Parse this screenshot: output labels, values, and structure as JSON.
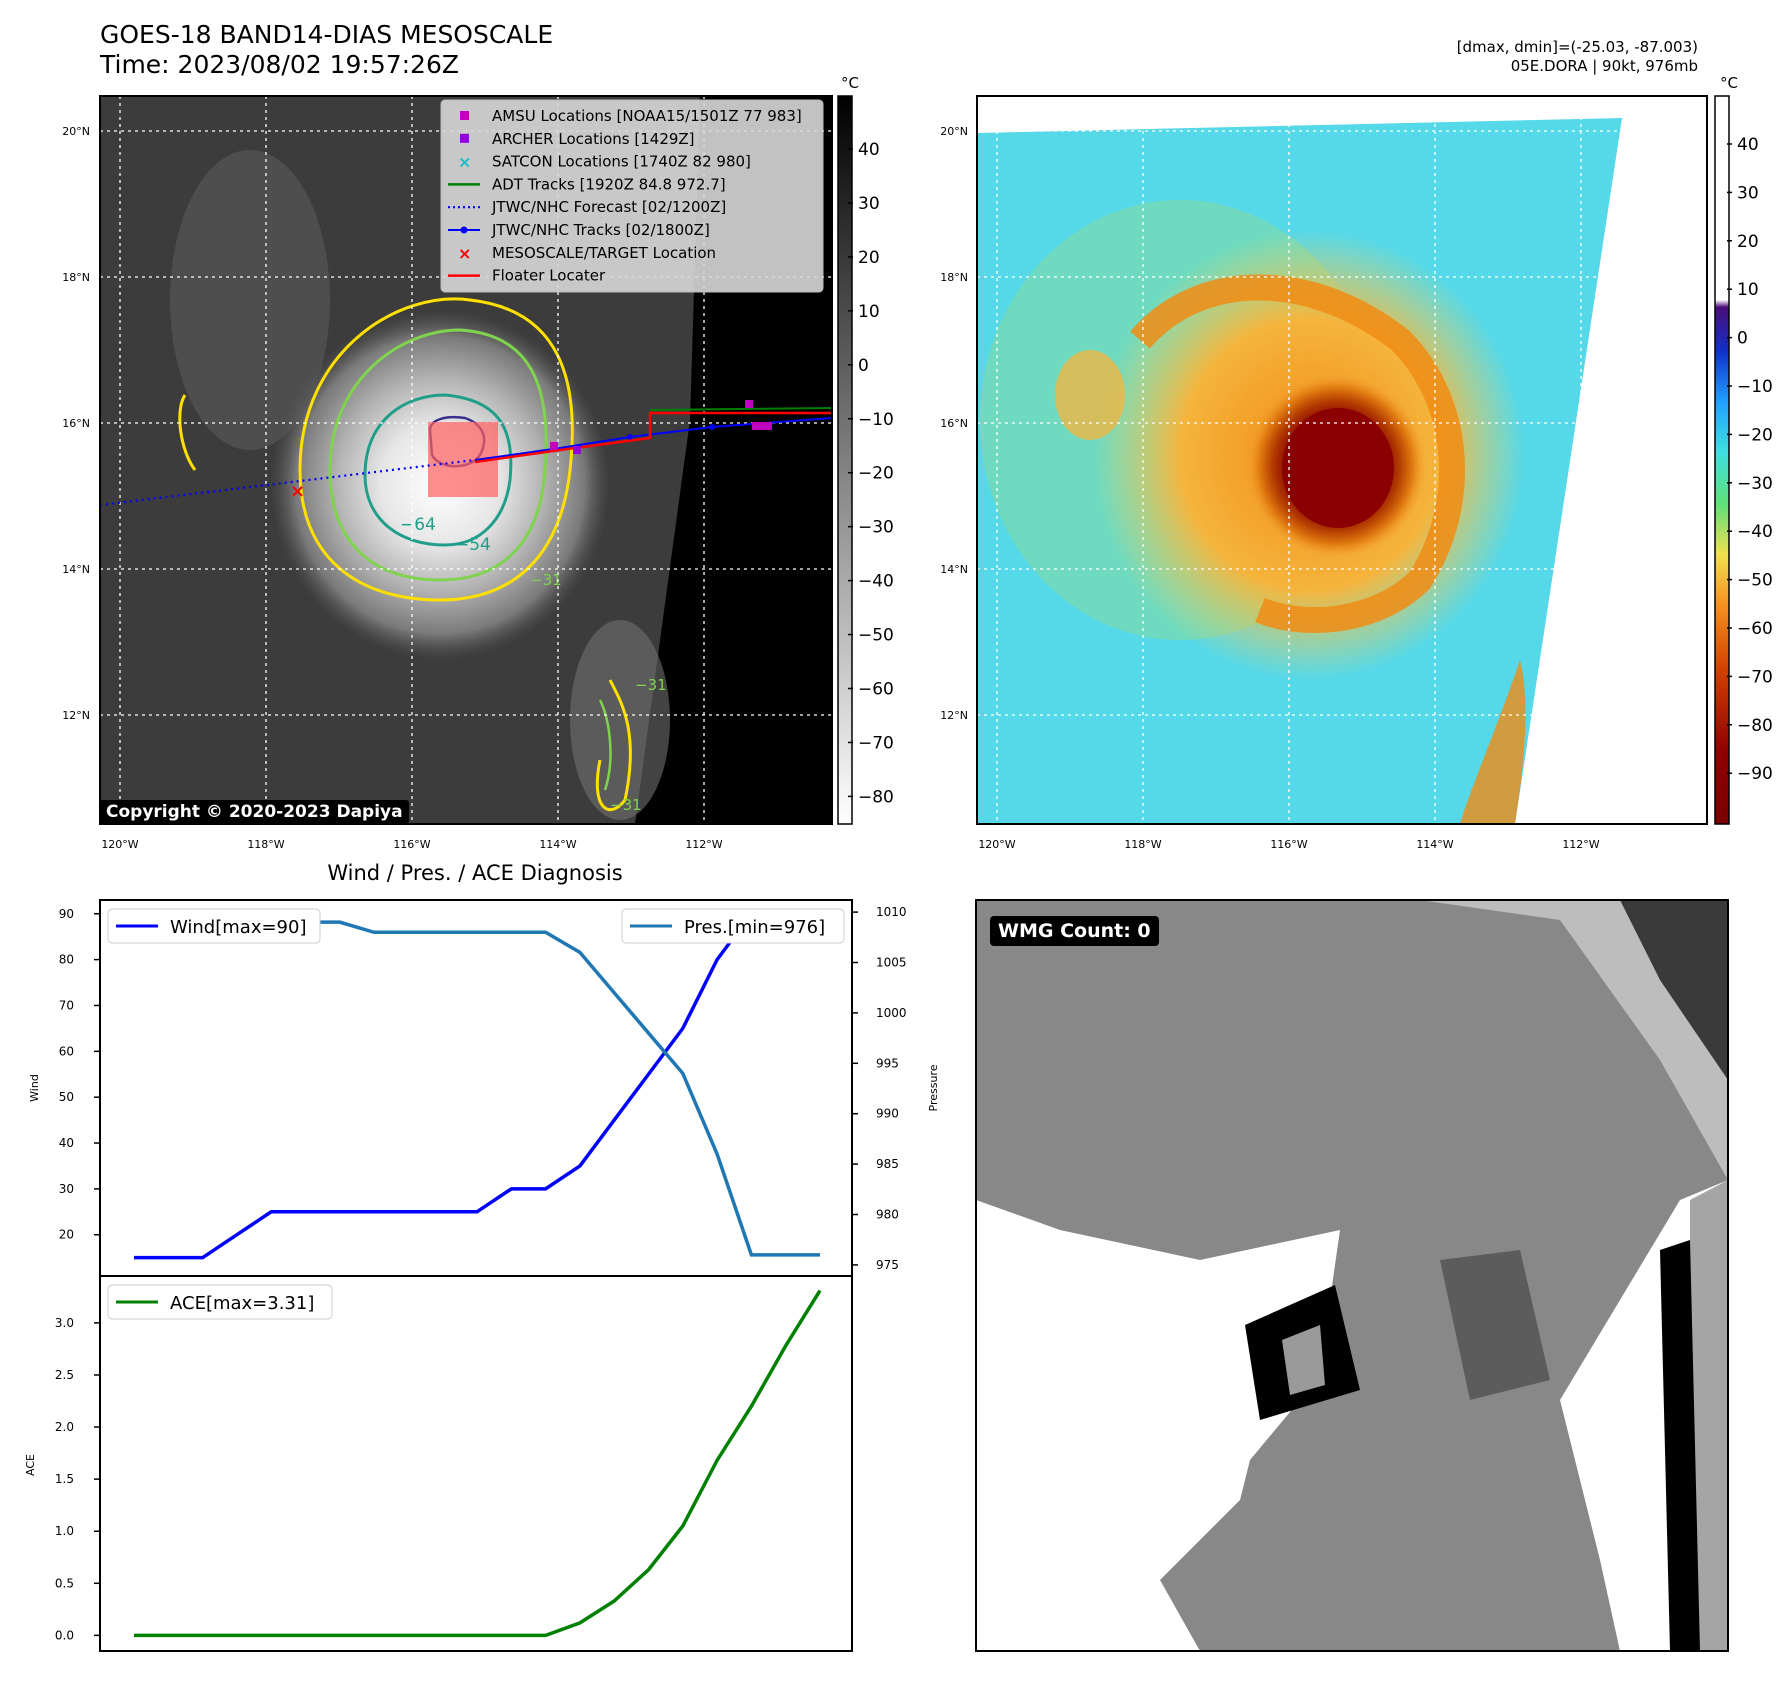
{
  "header": {
    "title_line1": "GOES-18 BAND14-DIAS MESOSCALE",
    "title_line2": "Time: 2023/08/02 19:57:26Z",
    "right_line1": "[dmax, dmin]=(-25.03, -87.003)",
    "right_line2": "05E.DORA | 90kt, 976mb"
  },
  "map_left": {
    "copyright": "Copyright © 2020-2023 Dapiya",
    "lat_ticks": [
      "20°N",
      "18°N",
      "16°N",
      "14°N",
      "12°N"
    ],
    "lon_ticks": [
      "120°W",
      "118°W",
      "116°W",
      "114°W",
      "112°W"
    ],
    "colorbar_unit": "°C",
    "colorbar_ticks": [
      "40",
      "30",
      "20",
      "10",
      "0",
      "−10",
      "−20",
      "−30",
      "−40",
      "−50",
      "−60",
      "−70",
      "−80"
    ],
    "contour_labels": [
      "−64",
      "−54",
      "−31",
      "−31",
      "−31"
    ],
    "legend": [
      {
        "label": "AMSU Locations [NOAA15/1501Z 77 983]",
        "marker": "square",
        "color": "#bf00bf"
      },
      {
        "label": "ARCHER Locations [1429Z]",
        "marker": "square",
        "color": "#9400d3"
      },
      {
        "label": "SATCON Locations [1740Z 82 980]",
        "marker": "x",
        "color": "#17becf"
      },
      {
        "label": "ADT Tracks [1920Z 84.8 972.7]",
        "marker": "line",
        "color": "#008000"
      },
      {
        "label": "JTWC/NHC Forecast [02/1200Z]",
        "marker": "dotted",
        "color": "#0000ff"
      },
      {
        "label": "JTWC/NHC Tracks [02/1800Z]",
        "marker": "line-dot",
        "color": "#0000ff"
      },
      {
        "label": "MESOSCALE/TARGET Location",
        "marker": "x",
        "color": "#ff0000"
      },
      {
        "label": "Floater Locater",
        "marker": "line",
        "color": "#ff0000"
      }
    ]
  },
  "map_right": {
    "lat_ticks": [
      "20°N",
      "18°N",
      "16°N",
      "14°N",
      "12°N"
    ],
    "lon_ticks": [
      "120°W",
      "118°W",
      "116°W",
      "114°W",
      "112°W"
    ],
    "colorbar_unit": "°C",
    "colorbar_ticks": [
      "40",
      "30",
      "20",
      "10",
      "0",
      "−10",
      "−20",
      "−30",
      "−40",
      "−50",
      "−60",
      "−70",
      "−80",
      "−90"
    ]
  },
  "wmg_panel": {
    "label": "WMG Count: 0"
  },
  "colors": {
    "wind": "#0000ff",
    "pressure": "#1f77b4",
    "ace": "#008000",
    "contour_yellow": "#ffe000",
    "contour_green": "#7fd34e",
    "contour_teal": "#1f9e89",
    "contour_purple": "#3b2e8c"
  },
  "chart_data": [
    {
      "type": "line",
      "title": "Wind / Pres. / ACE Diagnosis",
      "ylabel": "Wind",
      "ylabel_right": "Pressure",
      "ylim": [
        11,
        93
      ],
      "ylim_right": [
        973.9,
        1011.2
      ],
      "yticks": [
        20,
        30,
        40,
        50,
        60,
        70,
        80,
        90
      ],
      "yticks_right": [
        975,
        980,
        985,
        990,
        995,
        1000,
        1005,
        1010
      ],
      "x": [
        0,
        1,
        2,
        3,
        4,
        5,
        6,
        7,
        8,
        9,
        10,
        11,
        12,
        13,
        14,
        15,
        16,
        17,
        18,
        19,
        20
      ],
      "series": [
        {
          "name": "Wind[max=90]",
          "axis": "left",
          "values": [
            15,
            15,
            15,
            20,
            25,
            25,
            25,
            25,
            25,
            25,
            25,
            30,
            30,
            35,
            45,
            55,
            65,
            80,
            90,
            90,
            90
          ]
        },
        {
          "name": "Pres.[min=976]",
          "axis": "right",
          "values": [
            1010,
            1010,
            1010,
            1010,
            1009,
            1009,
            1009,
            1008,
            1008,
            1008,
            1008,
            1008,
            1008,
            1006,
            1002,
            998,
            994,
            986,
            976,
            976,
            976
          ]
        }
      ],
      "legend": [
        "top-left",
        "top-right"
      ]
    },
    {
      "type": "line",
      "ylabel": "ACE",
      "ylim": [
        -0.15,
        3.45
      ],
      "yticks": [
        "0.0",
        "0.5",
        "1.0",
        "1.5",
        "2.0",
        "2.5",
        "3.0"
      ],
      "x": [
        0,
        1,
        2,
        3,
        4,
        5,
        6,
        7,
        8,
        9,
        10,
        11,
        12,
        13,
        14,
        15,
        16,
        17,
        18,
        19,
        20
      ],
      "series": [
        {
          "name": "ACE[max=3.31]",
          "values": [
            0,
            0,
            0,
            0,
            0,
            0,
            0,
            0,
            0,
            0,
            0,
            0,
            0,
            0.12,
            0.33,
            0.63,
            1.05,
            1.68,
            2.2,
            2.78,
            3.31
          ]
        }
      ],
      "legend": "top-left"
    }
  ]
}
